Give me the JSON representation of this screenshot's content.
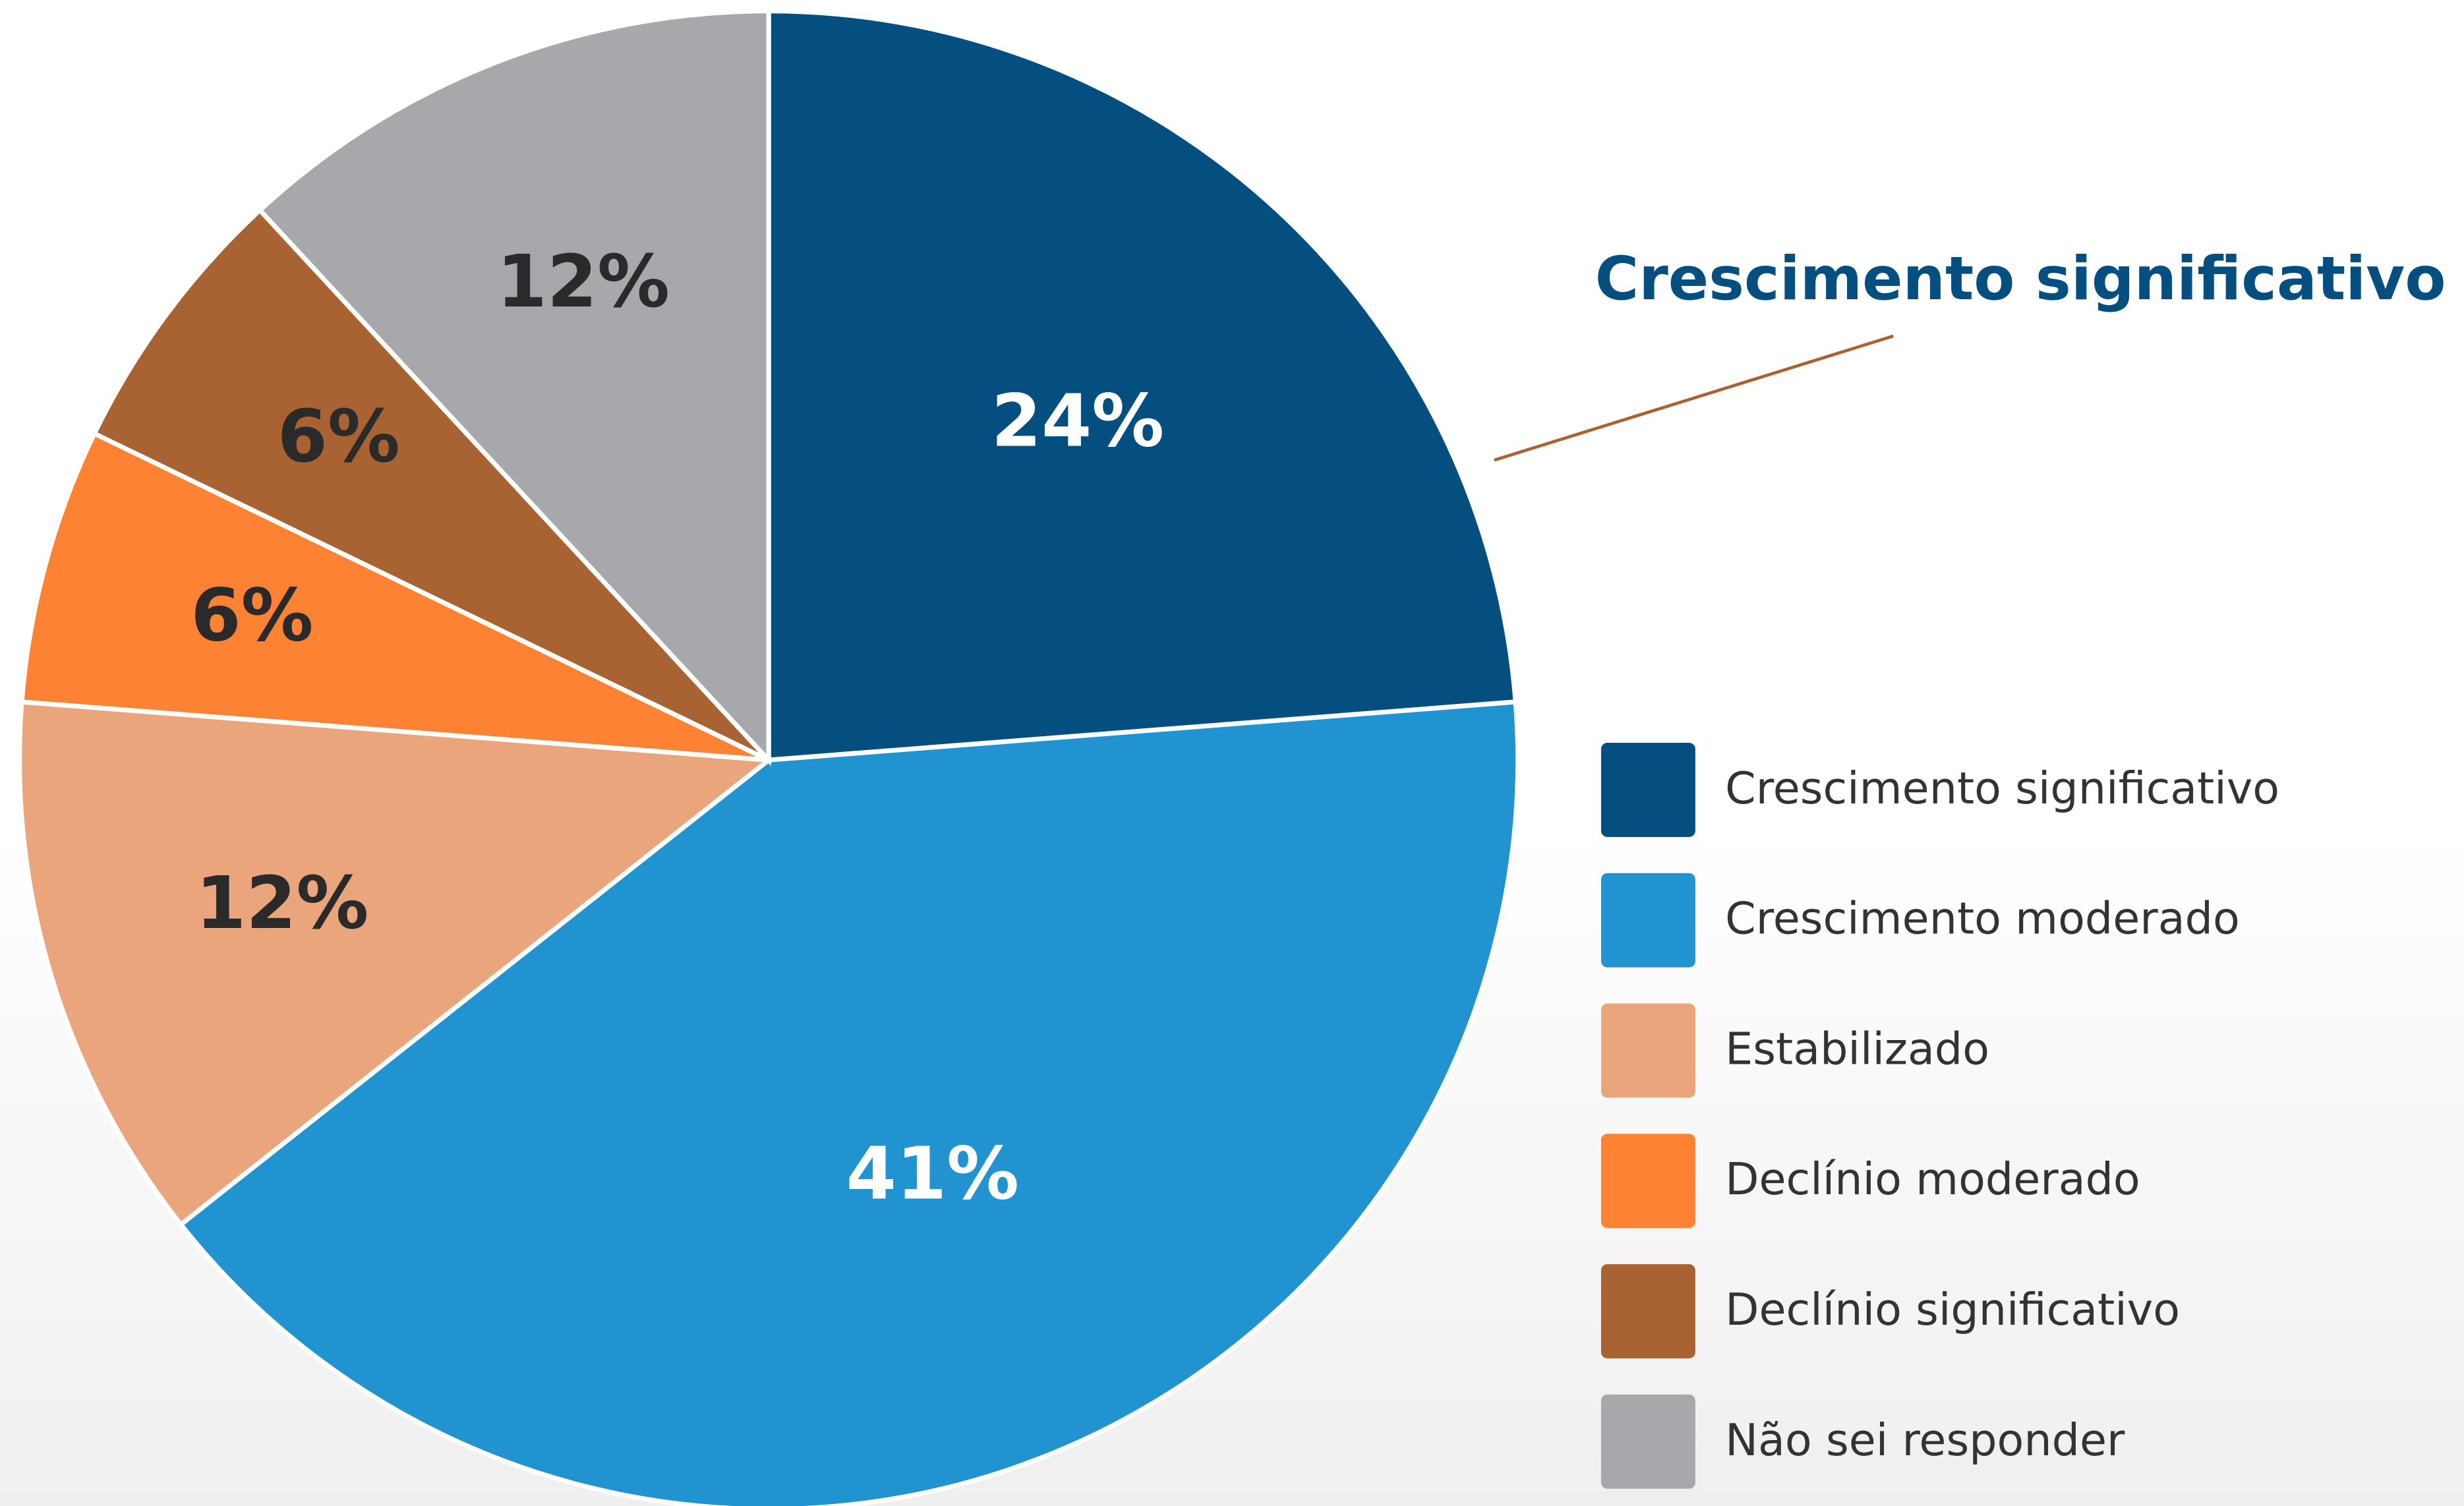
{
  "chart_data": {
    "type": "pie",
    "annotation": "Crescimento significativo",
    "categories": [
      "Crescimento significativo",
      "Crescimento moderado",
      "Estabilizado",
      "Declínio moderado",
      "Declínio significativo",
      "Não sei responder"
    ],
    "values": [
      24,
      41,
      12,
      6,
      6,
      12
    ],
    "value_labels": [
      "24%",
      "41%",
      "12%",
      "6%",
      "6%",
      "12%"
    ],
    "colors": [
      "#044f80",
      "#2093d0",
      "#eaa57c",
      "#fd8233",
      "#a96232",
      "#a7a8ac"
    ],
    "label_colors": [
      "#ffffff",
      "#ffffff",
      "#2a2a2a",
      "#2a2a2a",
      "#2a2a2a",
      "#2a2a2a"
    ],
    "legend": "right"
  }
}
